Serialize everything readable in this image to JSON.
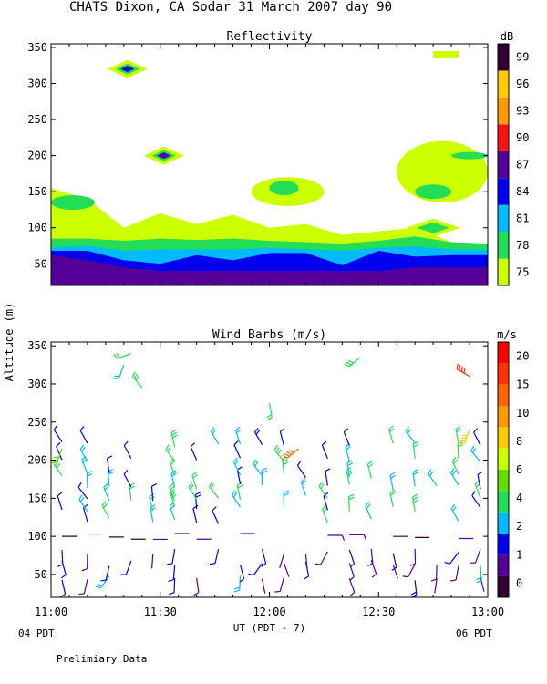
{
  "title": "CHATS Dixon, CA  Sodar  31 March 2007  day  90",
  "footer": "Prelimiary Data",
  "chart_data": [
    {
      "type": "heatmap",
      "title": "Reflectivity",
      "ylabel": "Altitude (m)",
      "ylim": [
        20,
        355
      ],
      "yticks": [
        50,
        100,
        150,
        200,
        250,
        300,
        350
      ],
      "xticks": [
        "11:00",
        "11:30",
        "12:00",
        "12:30",
        "13:00"
      ],
      "colorbar": {
        "unit": "dB",
        "labels": [
          "75",
          "78",
          "81",
          "84",
          "87",
          "90",
          "93",
          "96",
          "99"
        ],
        "colors": [
          "#ccff00",
          "#22dd55",
          "#00bbff",
          "#0000ee",
          "#550099",
          "#ff1111",
          "#ff9900",
          "#ffcc00",
          "#330033"
        ]
      },
      "layers": [
        {
          "level": 75,
          "color": "#ccff00",
          "x": [
            0,
            10,
            20,
            30,
            40,
            50,
            60,
            70,
            80,
            90,
            100,
            110,
            120
          ],
          "y": [
            30,
            30,
            30,
            30,
            30,
            30,
            30,
            30,
            30,
            30,
            30,
            30,
            30
          ],
          "ytop": [
            155,
            140,
            100,
            120,
            105,
            118,
            100,
            105,
            90,
            95,
            100,
            80,
            75
          ]
        },
        {
          "level": 78,
          "color": "#22dd55",
          "x": [
            0,
            10,
            20,
            30,
            40,
            50,
            60,
            70,
            80,
            90,
            100,
            110,
            120
          ],
          "ytop": [
            85,
            85,
            82,
            85,
            83,
            85,
            82,
            80,
            78,
            82,
            88,
            80,
            78
          ]
        },
        {
          "level": 81,
          "color": "#00bbff",
          "x": [
            0,
            10,
            20,
            30,
            40,
            50,
            60,
            70,
            80,
            90,
            100,
            110,
            120
          ],
          "ytop": [
            73,
            75,
            68,
            70,
            70,
            70,
            72,
            70,
            68,
            72,
            74,
            70,
            70
          ]
        },
        {
          "level": 84,
          "color": "#0000ee",
          "x": [
            0,
            10,
            20,
            30,
            40,
            50,
            60,
            70,
            80,
            90,
            100,
            110,
            120
          ],
          "ytop": [
            68,
            68,
            55,
            50,
            62,
            55,
            65,
            65,
            48,
            68,
            60,
            62,
            62
          ]
        },
        {
          "level": 87,
          "color": "#550099",
          "x": [
            0,
            10,
            20,
            30,
            40,
            50,
            60,
            70,
            80,
            90,
            100,
            110,
            120
          ],
          "ytop": [
            62,
            55,
            45,
            40,
            40,
            40,
            40,
            40,
            40,
            40,
            45,
            45,
            45
          ]
        }
      ],
      "patches": [
        {
          "level": 75,
          "x": [
            105,
            112
          ],
          "y": [
            340,
            345
          ],
          "shape": "bar"
        },
        {
          "level": 84,
          "x": [
            20,
            22
          ],
          "y": [
            320,
            320
          ],
          "shape": "diamond"
        },
        {
          "level": 87,
          "x": [
            30,
            32
          ],
          "y": [
            200,
            200
          ],
          "shape": "diamond"
        },
        {
          "level": 75,
          "x": [
            95,
            120
          ],
          "y": [
            135,
            220
          ],
          "shape": "region"
        },
        {
          "level": 78,
          "x": [
            100,
            110
          ],
          "y": [
            140,
            160
          ],
          "shape": "region"
        },
        {
          "level": 75,
          "x": [
            55,
            75
          ],
          "y": [
            130,
            170
          ],
          "shape": "region"
        },
        {
          "level": 78,
          "x": [
            60,
            68
          ],
          "y": [
            145,
            165
          ],
          "shape": "region"
        },
        {
          "level": 78,
          "x": [
            0,
            12
          ],
          "y": [
            125,
            145
          ],
          "shape": "region"
        },
        {
          "level": 78,
          "x": [
            110,
            120
          ],
          "y": [
            195,
            205
          ],
          "shape": "region"
        },
        {
          "level": 78,
          "x": [
            103,
            107
          ],
          "y": [
            90,
            110
          ],
          "shape": "diamond"
        }
      ]
    },
    {
      "type": "scatter",
      "title": "Wind Barbs (m/s)",
      "ylabel": "Altitude (m)",
      "xlabel": "UT  (PDT - 7)",
      "ylim": [
        20,
        355
      ],
      "yticks": [
        50,
        100,
        150,
        200,
        250,
        300,
        350
      ],
      "xticks": [
        "11:00",
        "11:30",
        "12:00",
        "12:30",
        "13:00"
      ],
      "x_sublabels": {
        "left": "04 PDT",
        "right": "06 PDT"
      },
      "colorbar": {
        "unit": "m/s",
        "labels": [
          "0",
          "1",
          "2",
          "4",
          "6",
          "8",
          "10",
          "15",
          "20"
        ],
        "colors": [
          "#330033",
          "#550099",
          "#0000ee",
          "#00bbff",
          "#22dd55",
          "#66dd00",
          "#ccff00",
          "#ffcc00",
          "#ff9900",
          "#ff6600",
          "#ff3300",
          "#ff0000"
        ]
      },
      "columns_minutes": [
        3,
        10,
        16,
        22,
        28,
        34,
        40,
        46,
        52,
        58,
        64,
        70,
        76,
        82,
        88,
        94,
        100,
        106,
        112,
        118
      ],
      "altitudes": [
        45,
        65,
        80,
        100,
        120,
        135,
        150,
        165,
        180,
        200,
        220
      ],
      "special_barbs": [
        {
          "t": 22,
          "alt": 340,
          "speed": 7,
          "dir": 250
        },
        {
          "t": 20,
          "alt": 325,
          "speed": 5,
          "dir": 200
        },
        {
          "t": 25,
          "alt": 295,
          "speed": 8,
          "dir": 320
        },
        {
          "t": 60,
          "alt": 275,
          "speed": 7,
          "dir": 170
        },
        {
          "t": 85,
          "alt": 335,
          "speed": 8,
          "dir": 230
        },
        {
          "t": 115,
          "alt": 310,
          "speed": 18,
          "dir": 300
        },
        {
          "t": 115,
          "alt": 240,
          "speed": 13,
          "dir": 200
        },
        {
          "t": 68,
          "alt": 215,
          "speed": 16,
          "dir": 230
        },
        {
          "t": 3,
          "alt": 215,
          "speed": 10,
          "dir": 200
        }
      ]
    }
  ]
}
